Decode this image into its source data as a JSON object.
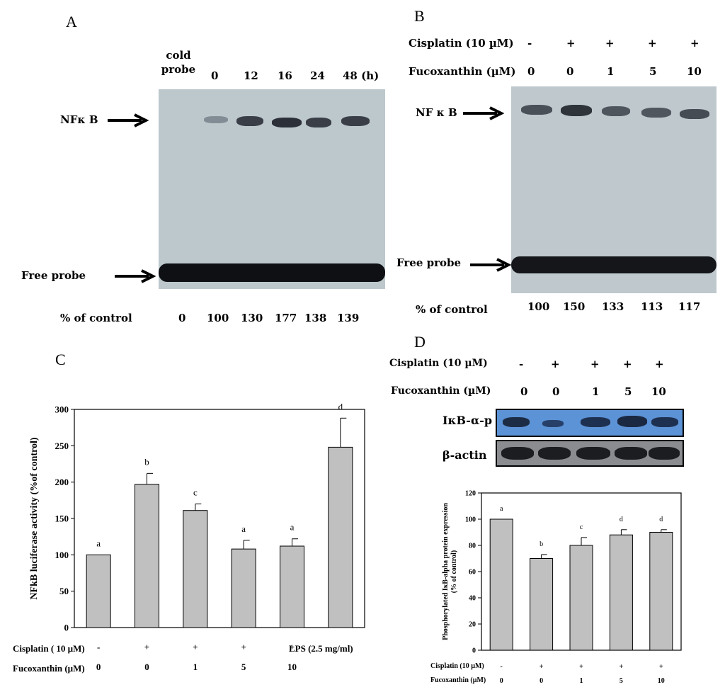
{
  "panelA": {
    "letter": "A",
    "header": [
      "cold\nprobe",
      "0",
      "12",
      "16",
      "24",
      "48 (h)"
    ],
    "header_cold_1": "cold",
    "header_cold_2": "probe",
    "nfkb_label": "NFκ B",
    "free_probe_label": "Free probe",
    "pct_label": "% of control",
    "pct_values": [
      "0",
      "100",
      "130",
      "177",
      "138",
      "139"
    ]
  },
  "panelB": {
    "letter": "B",
    "cis_label": "Cisplatin (10 µM)",
    "cis_values": [
      "-",
      "+",
      "+",
      "+",
      "+"
    ],
    "fuco_label": "Fucoxanthin (µM)",
    "fuco_values": [
      "0",
      "0",
      "1",
      "5",
      "10"
    ],
    "nfkb_label": "NF κ B",
    "free_probe_label": "Free probe",
    "pct_label": "% of control",
    "pct_values": [
      "100",
      "150",
      "133",
      "113",
      "117"
    ]
  },
  "panelD_blot": {
    "letter": "D",
    "cis_label": "Cisplatin (10 µM)",
    "cis_values": [
      "-",
      "+",
      "+",
      "+",
      "+"
    ],
    "fuco_label": "Fucoxanthin (µM)",
    "fuco_values": [
      "0",
      "0",
      "1",
      "5",
      "10"
    ],
    "row1_label": "IκB-α-p",
    "row2_label": "β-actin"
  },
  "chart_data": [
    {
      "panel": "C",
      "type": "bar",
      "ylabel": "NFkB luciferase activity (%of control)",
      "ylim": [
        0,
        300
      ],
      "yticks": [
        0,
        50,
        100,
        150,
        200,
        250,
        300
      ],
      "values": [
        100,
        197,
        161,
        108,
        112,
        248
      ],
      "errors": [
        0,
        15,
        9,
        12,
        10,
        40
      ],
      "sig_letters": [
        "a",
        "b",
        "c",
        "a",
        "a",
        "d"
      ],
      "cis_label": "Cisplatin ( 10 µM)",
      "cis_values": [
        "-",
        "+",
        "+",
        "+",
        "+"
      ],
      "fuco_label": "Fucoxanthin (µM)",
      "fuco_values": [
        "0",
        "0",
        "1",
        "5",
        "10"
      ],
      "extra_label": "LPS (2.5 mg/ml)",
      "bar_color": "#c0c0c0"
    },
    {
      "panel": "D",
      "type": "bar",
      "ylabel": "Phosphorylated IκB-alpha protein expression\n(% of control)",
      "ylabel_1": "Phosphorylated IκB-alpha protein expression",
      "ylabel_2": "(% of control)",
      "ylim": [
        0,
        120
      ],
      "yticks": [
        0,
        20,
        40,
        60,
        80,
        100,
        120
      ],
      "values": [
        100,
        70,
        80,
        88,
        90
      ],
      "errors": [
        0,
        3,
        6,
        4,
        2
      ],
      "sig_letters": [
        "a",
        "b",
        "c",
        "d",
        "d"
      ],
      "cis_label": "Cisplatin (10 µM)",
      "cis_values": [
        "-",
        "+",
        "+",
        "+",
        "+"
      ],
      "fuco_label": "Fucoxanthin (µM)",
      "fuco_values": [
        "0",
        "0",
        "1",
        "5",
        "10"
      ],
      "bar_color": "#c0c0c0"
    }
  ]
}
